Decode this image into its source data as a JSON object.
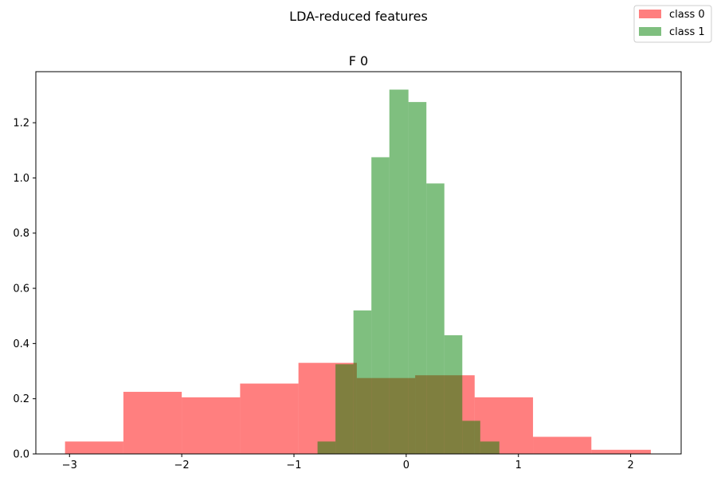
{
  "chart_data": {
    "type": "bar",
    "suptitle": "LDA-reduced features",
    "title": "F 0",
    "xlim": [
      -3.3,
      2.45
    ],
    "ylim": [
      0,
      1.385
    ],
    "xticks": [
      -3,
      -2,
      -1,
      0,
      1,
      2
    ],
    "xtick_labels": [
      "−3",
      "−2",
      "−1",
      "0",
      "1",
      "2"
    ],
    "yticks": [
      0.0,
      0.2,
      0.4,
      0.6,
      0.8,
      1.0,
      1.2
    ],
    "ytick_labels": [
      "0.0",
      "0.2",
      "0.4",
      "0.6",
      "0.8",
      "1.0",
      "1.2"
    ],
    "grid": false,
    "legend_position": "top-right (figure)",
    "series": [
      {
        "name": "class 0",
        "color": "#ff0000",
        "alpha": 0.5,
        "bin_edges": [
          -3.04,
          -2.52,
          -2.0,
          -1.48,
          -0.96,
          -0.44,
          0.08,
          0.61,
          1.13,
          1.65,
          2.18
        ],
        "values": [
          0.045,
          0.225,
          0.205,
          0.255,
          0.33,
          0.275,
          0.285,
          0.205,
          0.062,
          0.015
        ]
      },
      {
        "name": "class 1",
        "color": "#008000",
        "alpha": 0.5,
        "bin_edges": [
          -0.79,
          -0.63,
          -0.47,
          -0.31,
          -0.15,
          0.02,
          0.18,
          0.34,
          0.5,
          0.66,
          0.83
        ],
        "values": [
          0.045,
          0.325,
          0.52,
          1.075,
          1.32,
          1.275,
          0.98,
          0.43,
          0.12,
          0.045
        ]
      }
    ]
  }
}
